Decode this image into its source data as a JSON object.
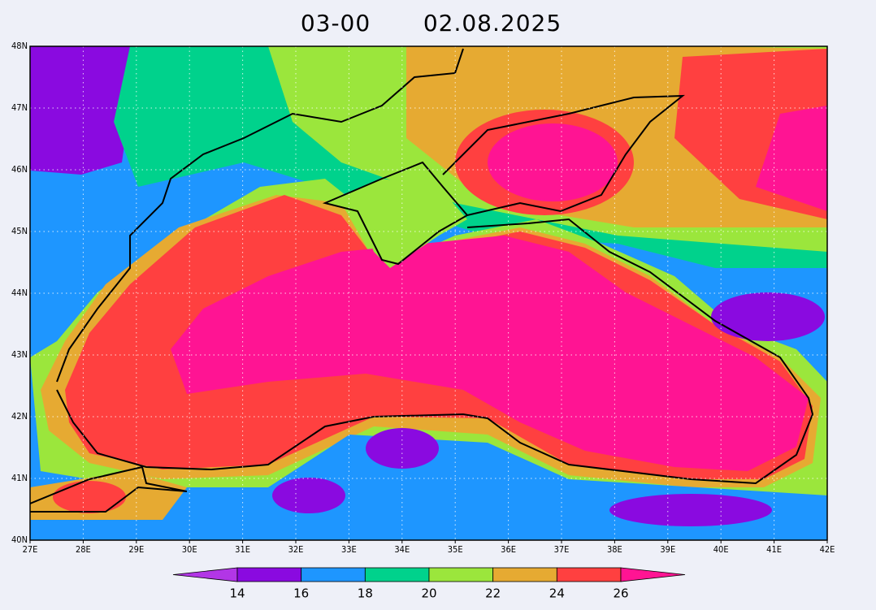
{
  "title": {
    "time": "03-00",
    "date": "02.08.2025"
  },
  "axes": {
    "lon_labels": [
      "27E",
      "28E",
      "29E",
      "30E",
      "31E",
      "32E",
      "33E",
      "34E",
      "35E",
      "36E",
      "37E",
      "38E",
      "39E",
      "40E",
      "41E",
      "42E"
    ],
    "lat_labels": [
      "40N",
      "41N",
      "42N",
      "43N",
      "44N",
      "45N",
      "46N",
      "47N",
      "48N"
    ]
  },
  "colorbar": {
    "labels": [
      14,
      16,
      18,
      20,
      22,
      24,
      26
    ],
    "colors": [
      "#b236e6",
      "#8a0ae0",
      "#1e96ff",
      "#00d28c",
      "#9be63c",
      "#e6aa32",
      "#ff4040",
      "#ff1493"
    ]
  }
}
